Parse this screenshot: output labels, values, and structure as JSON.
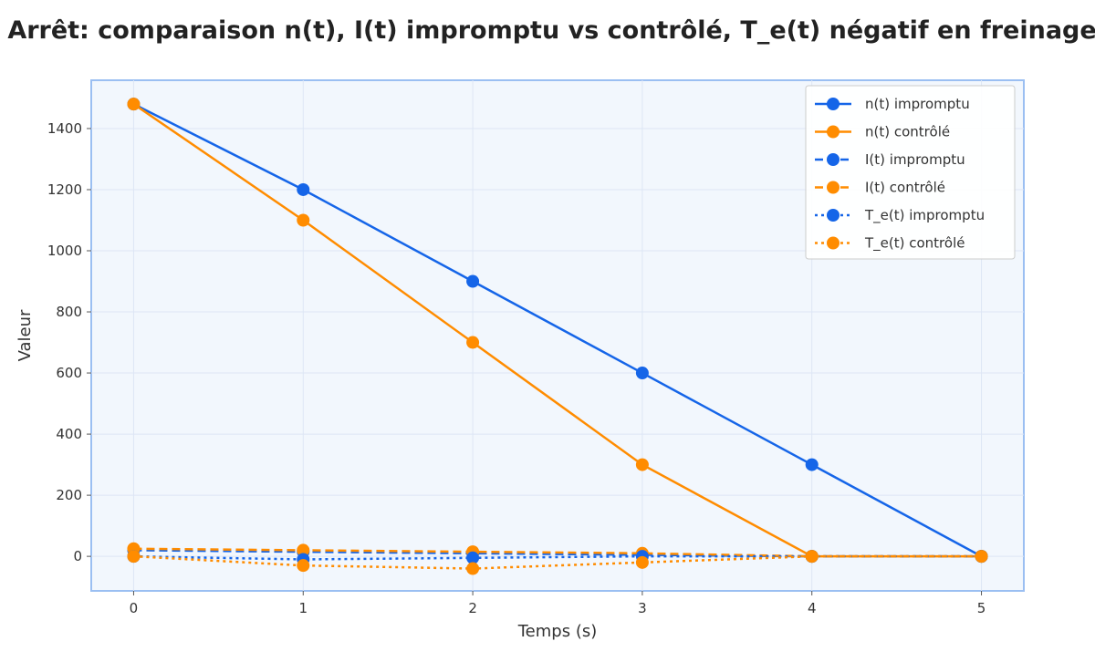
{
  "chart_data": {
    "type": "line",
    "title": "Arrêt: comparaison n(t), I(t) impromptu vs contrôlé, T_e(t) négatif en freinage",
    "xlabel": "Temps (s)",
    "ylabel": "Valeur",
    "x": [
      0,
      1,
      2,
      3,
      4,
      5
    ],
    "xlim": [
      -0.25,
      5.25
    ],
    "ylim": [
      -113,
      1558
    ],
    "xticks": [
      0,
      1,
      2,
      3,
      4,
      5
    ],
    "yticks": [
      0,
      200,
      400,
      600,
      800,
      1000,
      1200,
      1400
    ],
    "grid": true,
    "legend_position": "top-right",
    "series": [
      {
        "name": "n(t) impromptu",
        "values": [
          1480,
          1200,
          900,
          600,
          300,
          0
        ],
        "color": "#1565e8",
        "style": "solid"
      },
      {
        "name": "n(t) contrôlé",
        "values": [
          1480,
          1100,
          700,
          300,
          0,
          0
        ],
        "color": "#ff8c00",
        "style": "solid"
      },
      {
        "name": "I(t) impromptu",
        "values": [
          20,
          15,
          10,
          5,
          0,
          0
        ],
        "color": "#1565e8",
        "style": "dashed"
      },
      {
        "name": "I(t) contrôlé",
        "values": [
          25,
          20,
          15,
          10,
          0,
          0
        ],
        "color": "#ff8c00",
        "style": "dashed"
      },
      {
        "name": "T_e(t) impromptu",
        "values": [
          0,
          -10,
          -5,
          0,
          0,
          0
        ],
        "color": "#1565e8",
        "style": "dotted"
      },
      {
        "name": "T_e(t) contrôlé",
        "values": [
          0,
          -30,
          -40,
          -20,
          0,
          0
        ],
        "color": "#ff8c00",
        "style": "dotted"
      }
    ]
  }
}
